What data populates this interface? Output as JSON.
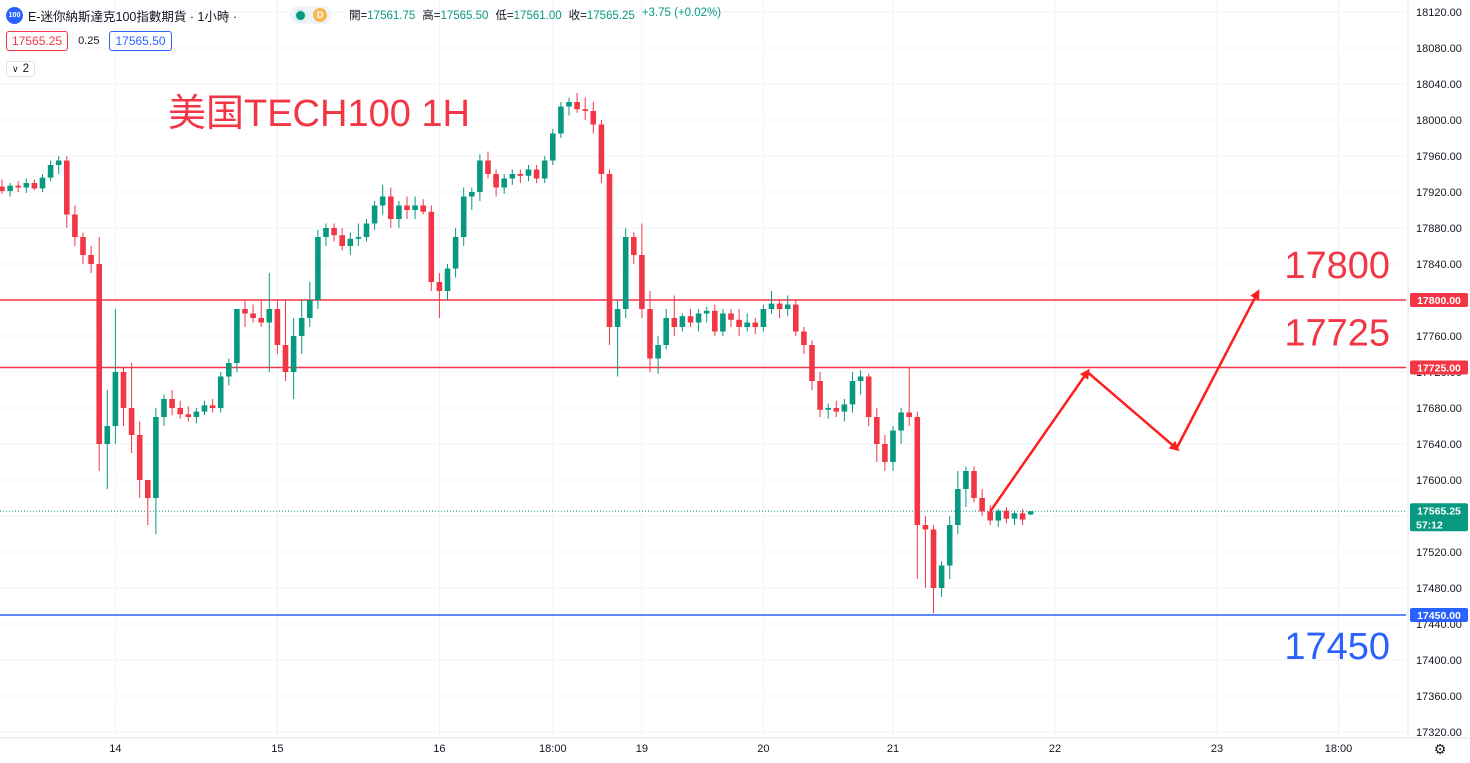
{
  "header": {
    "symbol_badge": "100",
    "title": "E-迷你納斯達克100指數期貨 · 1小時 ·",
    "status_dot": "market-open",
    "d_badge": "D",
    "ohlc": [
      {
        "k": "開=",
        "v": "17561.75"
      },
      {
        "k": "高=",
        "v": "17565.50"
      },
      {
        "k": "低=",
        "v": "17561.00"
      },
      {
        "k": "收=",
        "v": "17565.25"
      },
      {
        "k": "",
        "v": "+3.75 (+0.02%)"
      }
    ]
  },
  "trade": {
    "sell": "17565.25",
    "spread": "0.25",
    "buy": "17565.50"
  },
  "indicators_toggle": {
    "count": "2"
  },
  "colors": {
    "up": "#089981",
    "down": "#f23645",
    "red_level": "#f23645",
    "blue_level": "#2962ff",
    "arrow": "#ff1e1e"
  },
  "chart_data": {
    "type": "candlestick",
    "title": "美国TECH100 1H",
    "y_axis": {
      "ticks": [
        18120,
        18080,
        18040,
        18000,
        17960,
        17920,
        17880,
        17840,
        17800,
        17760,
        17720,
        17680,
        17640,
        17600,
        17560,
        17520,
        17480,
        17440,
        17400,
        17360,
        17320
      ],
      "range": [
        17315,
        18125
      ]
    },
    "x_axis": {
      "labels": [
        {
          "bar": 14,
          "text": "14"
        },
        {
          "bar": 34,
          "text": "15"
        },
        {
          "bar": 54,
          "text": "16"
        },
        {
          "bar": 68,
          "text": "18:00"
        },
        {
          "bar": 79,
          "text": "19"
        },
        {
          "bar": 94,
          "text": "20"
        },
        {
          "bar": 110,
          "text": "21"
        },
        {
          "bar": 130,
          "text": "22"
        },
        {
          "bar": 150,
          "text": "23"
        },
        {
          "bar": 165,
          "text": "18:00"
        }
      ]
    },
    "levels": [
      {
        "value": 17800,
        "label": "17800.00",
        "big_label": "17800",
        "color": "red"
      },
      {
        "value": 17725,
        "label": "17725.00",
        "big_label": "17725",
        "color": "red"
      },
      {
        "value": 17450,
        "label": "17450.00",
        "big_label": "17450",
        "color": "blue"
      }
    ],
    "current": {
      "price": "17565.25",
      "countdown": "57:12",
      "value": 17565.25
    },
    "projection": [
      [
        122,
        17565
      ],
      [
        134,
        17720
      ],
      [
        145,
        17635
      ],
      [
        155,
        17808
      ]
    ],
    "candles": [
      [
        17926,
        17934,
        17918,
        17921
      ],
      [
        17921,
        17930,
        17915,
        17927
      ],
      [
        17927,
        17932,
        17920,
        17925
      ],
      [
        17925,
        17935,
        17919,
        17930
      ],
      [
        17930,
        17934,
        17922,
        17924
      ],
      [
        17924,
        17940,
        17920,
        17936
      ],
      [
        17936,
        17955,
        17932,
        17950
      ],
      [
        17950,
        17960,
        17940,
        17955
      ],
      [
        17955,
        17960,
        17880,
        17895
      ],
      [
        17895,
        17905,
        17860,
        17870
      ],
      [
        17870,
        17875,
        17840,
        17850
      ],
      [
        17850,
        17860,
        17830,
        17840
      ],
      [
        17840,
        17870,
        17610,
        17640
      ],
      [
        17640,
        17700,
        17590,
        17660
      ],
      [
        17660,
        17790,
        17640,
        17720
      ],
      [
        17720,
        17725,
        17660,
        17680
      ],
      [
        17680,
        17730,
        17630,
        17650
      ],
      [
        17650,
        17665,
        17580,
        17600
      ],
      [
        17600,
        17600,
        17550,
        17580
      ],
      [
        17580,
        17680,
        17540,
        17670
      ],
      [
        17670,
        17695,
        17660,
        17690
      ],
      [
        17690,
        17700,
        17672,
        17680
      ],
      [
        17680,
        17688,
        17668,
        17673
      ],
      [
        17673,
        17682,
        17665,
        17670
      ],
      [
        17670,
        17680,
        17663,
        17676
      ],
      [
        17676,
        17688,
        17672,
        17683
      ],
      [
        17683,
        17690,
        17675,
        17680
      ],
      [
        17680,
        17720,
        17675,
        17715
      ],
      [
        17715,
        17735,
        17705,
        17730
      ],
      [
        17730,
        17790,
        17720,
        17790
      ],
      [
        17790,
        17800,
        17770,
        17785
      ],
      [
        17785,
        17795,
        17775,
        17780
      ],
      [
        17780,
        17800,
        17770,
        17775
      ],
      [
        17775,
        17830,
        17720,
        17790
      ],
      [
        17790,
        17800,
        17740,
        17750
      ],
      [
        17750,
        17800,
        17710,
        17720
      ],
      [
        17720,
        17780,
        17690,
        17760
      ],
      [
        17760,
        17800,
        17740,
        17780
      ],
      [
        17780,
        17820,
        17770,
        17800
      ],
      [
        17800,
        17878,
        17790,
        17870
      ],
      [
        17870,
        17885,
        17860,
        17880
      ],
      [
        17880,
        17885,
        17865,
        17872
      ],
      [
        17872,
        17880,
        17855,
        17860
      ],
      [
        17860,
        17875,
        17850,
        17868
      ],
      [
        17868,
        17885,
        17860,
        17870
      ],
      [
        17870,
        17890,
        17865,
        17885
      ],
      [
        17885,
        17910,
        17878,
        17905
      ],
      [
        17905,
        17928,
        17895,
        17915
      ],
      [
        17915,
        17925,
        17880,
        17890
      ],
      [
        17890,
        17910,
        17880,
        17905
      ],
      [
        17905,
        17915,
        17890,
        17900
      ],
      [
        17900,
        17915,
        17890,
        17905
      ],
      [
        17905,
        17912,
        17895,
        17898
      ],
      [
        17898,
        17905,
        17810,
        17820
      ],
      [
        17820,
        17830,
        17780,
        17810
      ],
      [
        17810,
        17840,
        17800,
        17835
      ],
      [
        17835,
        17880,
        17825,
        17870
      ],
      [
        17870,
        17925,
        17860,
        17915
      ],
      [
        17915,
        17925,
        17900,
        17920
      ],
      [
        17920,
        17962,
        17910,
        17955
      ],
      [
        17955,
        17965,
        17935,
        17940
      ],
      [
        17940,
        17945,
        17915,
        17925
      ],
      [
        17925,
        17940,
        17918,
        17935
      ],
      [
        17935,
        17945,
        17928,
        17940
      ],
      [
        17940,
        17945,
        17930,
        17938
      ],
      [
        17938,
        17950,
        17932,
        17945
      ],
      [
        17945,
        17950,
        17930,
        17935
      ],
      [
        17935,
        17960,
        17930,
        17955
      ],
      [
        17955,
        17990,
        17950,
        17985
      ],
      [
        17985,
        18020,
        17980,
        18015
      ],
      [
        18015,
        18025,
        18005,
        18020
      ],
      [
        18020,
        18030,
        18008,
        18012
      ],
      [
        18012,
        18025,
        18000,
        18010
      ],
      [
        18010,
        18020,
        17985,
        17995
      ],
      [
        17995,
        18000,
        17930,
        17940
      ],
      [
        17940,
        17945,
        17750,
        17770
      ],
      [
        17770,
        17800,
        17715,
        17790
      ],
      [
        17790,
        17880,
        17780,
        17870
      ],
      [
        17870,
        17875,
        17840,
        17850
      ],
      [
        17850,
        17885,
        17780,
        17790
      ],
      [
        17790,
        17810,
        17720,
        17735
      ],
      [
        17735,
        17760,
        17718,
        17750
      ],
      [
        17750,
        17790,
        17745,
        17780
      ],
      [
        17780,
        17805,
        17760,
        17770
      ],
      [
        17770,
        17785,
        17765,
        17782
      ],
      [
        17782,
        17790,
        17770,
        17775
      ],
      [
        17775,
        17790,
        17765,
        17785
      ],
      [
        17785,
        17792,
        17775,
        17788
      ],
      [
        17788,
        17795,
        17760,
        17765
      ],
      [
        17765,
        17790,
        17760,
        17785
      ],
      [
        17785,
        17790,
        17770,
        17778
      ],
      [
        17778,
        17790,
        17760,
        17770
      ],
      [
        17770,
        17785,
        17765,
        17775
      ],
      [
        17775,
        17780,
        17762,
        17770
      ],
      [
        17770,
        17795,
        17765,
        17790
      ],
      [
        17790,
        17810,
        17785,
        17796
      ],
      [
        17796,
        17800,
        17780,
        17790
      ],
      [
        17790,
        17805,
        17782,
        17795
      ],
      [
        17795,
        17800,
        17760,
        17765
      ],
      [
        17765,
        17770,
        17740,
        17750
      ],
      [
        17750,
        17755,
        17700,
        17710
      ],
      [
        17710,
        17720,
        17670,
        17678
      ],
      [
        17678,
        17685,
        17668,
        17680
      ],
      [
        17680,
        17688,
        17670,
        17676
      ],
      [
        17676,
        17690,
        17665,
        17684
      ],
      [
        17684,
        17720,
        17675,
        17710
      ],
      [
        17710,
        17722,
        17695,
        17715
      ],
      [
        17715,
        17718,
        17660,
        17670
      ],
      [
        17670,
        17680,
        17620,
        17640
      ],
      [
        17640,
        17650,
        17610,
        17620
      ],
      [
        17620,
        17660,
        17610,
        17655
      ],
      [
        17655,
        17680,
        17640,
        17675
      ],
      [
        17675,
        17725,
        17660,
        17670
      ],
      [
        17670,
        17676,
        17490,
        17550
      ],
      [
        17550,
        17560,
        17480,
        17545
      ],
      [
        17545,
        17550,
        17452,
        17480
      ],
      [
        17480,
        17510,
        17470,
        17505
      ],
      [
        17505,
        17560,
        17490,
        17550
      ],
      [
        17550,
        17610,
        17540,
        17590
      ],
      [
        17590,
        17615,
        17570,
        17610
      ],
      [
        17610,
        17615,
        17575,
        17580
      ],
      [
        17580,
        17590,
        17560,
        17565
      ],
      [
        17565,
        17572,
        17550,
        17555
      ],
      [
        17555,
        17568,
        17548,
        17566
      ],
      [
        17566,
        17570,
        17552,
        17557
      ],
      [
        17557,
        17566,
        17550,
        17563
      ],
      [
        17563,
        17568,
        17550,
        17556
      ],
      [
        17561.75,
        17565.5,
        17561,
        17565.25
      ]
    ]
  }
}
